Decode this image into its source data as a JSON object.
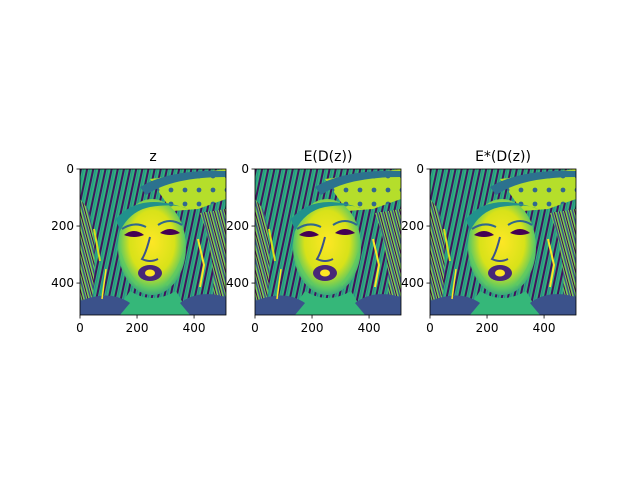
{
  "figure": {
    "background": "#ffffff"
  },
  "chart_data": [
    {
      "type": "heatmap",
      "title": "z",
      "colormap": "viridis",
      "xlim": [
        0,
        512
      ],
      "ylim": [
        512,
        0
      ],
      "xticks": [
        "0",
        "200",
        "400"
      ],
      "yticks": [
        "0",
        "200",
        "400"
      ],
      "xtick_values": [
        0,
        200,
        400
      ],
      "ytick_values": [
        0,
        200,
        400
      ],
      "xlabel": "",
      "ylabel": ""
    },
    {
      "type": "heatmap",
      "title": "E(D(z))",
      "colormap": "viridis",
      "xlim": [
        0,
        512
      ],
      "ylim": [
        512,
        0
      ],
      "xticks": [
        "0",
        "200",
        "400"
      ],
      "yticks": [
        "0",
        "200",
        "400"
      ],
      "xtick_values": [
        0,
        200,
        400
      ],
      "ytick_values": [
        0,
        200,
        400
      ],
      "xlabel": "",
      "ylabel": ""
    },
    {
      "type": "heatmap",
      "title": "E*(D(z))",
      "colormap": "viridis",
      "xlim": [
        0,
        512
      ],
      "ylim": [
        512,
        0
      ],
      "xticks": [
        "0",
        "200",
        "400"
      ],
      "yticks": [
        "0",
        "200",
        "400"
      ],
      "xtick_values": [
        0,
        200,
        400
      ],
      "ytick_values": [
        0,
        200,
        400
      ],
      "xlabel": "",
      "ylabel": ""
    }
  ]
}
